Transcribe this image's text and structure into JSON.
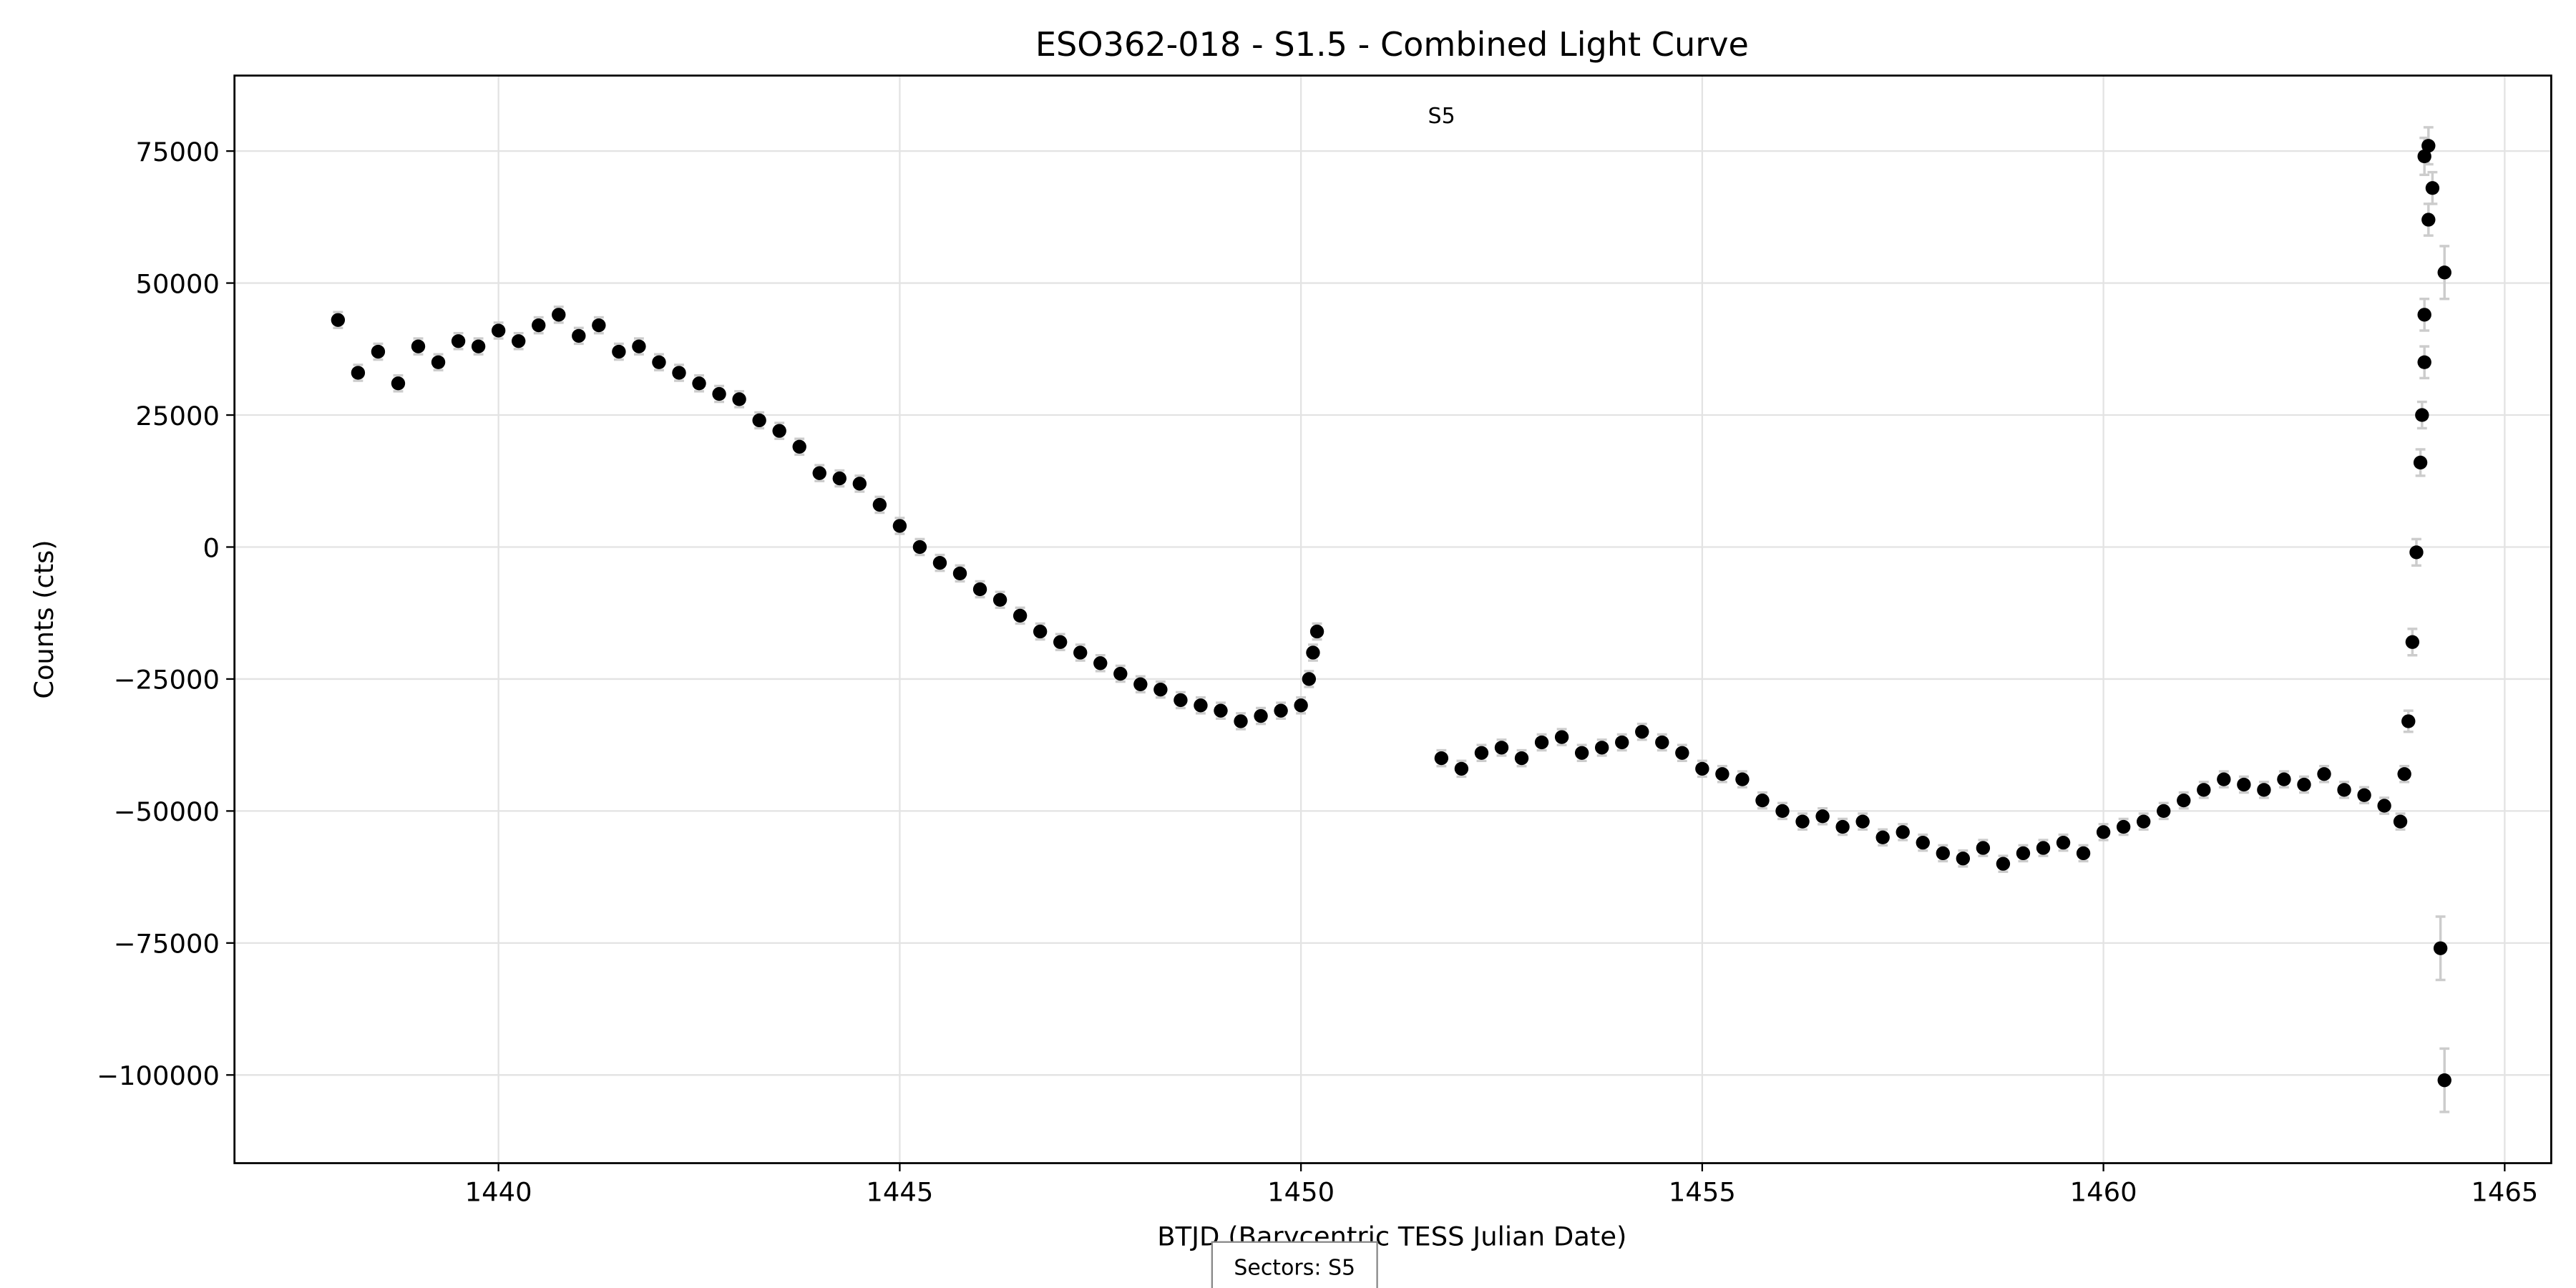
{
  "chart_data": {
    "type": "scatter",
    "title": "ESO362-018 - S1.5 - Combined Light Curve",
    "x_label": "BTJD (Barycentric TESS Julian Date)",
    "y_label": "Counts (cts)",
    "annotation": "S5",
    "footer": "Sectors: S5",
    "grid": true,
    "color": "#000000",
    "error_color": "#cccccc",
    "xlim": [
      1436.71,
      1465.58
    ],
    "ylim": [
      -116700,
      89300
    ],
    "xticks": [
      1440,
      1445,
      1450,
      1455,
      1460,
      1465
    ],
    "yticks": [
      {
        "value": -100000,
        "label": "−100000"
      },
      {
        "value": -75000,
        "label": "−75000"
      },
      {
        "value": -50000,
        "label": "−50000"
      },
      {
        "value": -25000,
        "label": "−25000"
      },
      0,
      25000,
      50000,
      75000
    ],
    "x": [
      1438,
      1438.25,
      1438.5,
      1438.75,
      1439,
      1439.25,
      1439.5,
      1439.75,
      1440,
      1440.25,
      1440.5,
      1440.75,
      1441,
      1441.25,
      1441.5,
      1441.75,
      1442,
      1442.25,
      1442.5,
      1442.75,
      1443,
      1443.25,
      1443.5,
      1443.75,
      1444,
      1444.25,
      1444.5,
      1444.75,
      1445,
      1445.25,
      1445.5,
      1445.75,
      1446,
      1446.25,
      1446.5,
      1446.75,
      1447,
      1447.25,
      1447.5,
      1447.75,
      1448,
      1448.25,
      1448.5,
      1448.75,
      1449,
      1449.25,
      1449.5,
      1449.75,
      1450,
      1450.1,
      1450.15,
      1450.2,
      1451.75,
      1452,
      1452.25,
      1452.5,
      1452.75,
      1453,
      1453.25,
      1453.5,
      1453.75,
      1454,
      1454.25,
      1454.5,
      1454.75,
      1455,
      1455.25,
      1455.5,
      1455.75,
      1456,
      1456.25,
      1456.5,
      1456.75,
      1457,
      1457.25,
      1457.5,
      1457.75,
      1458,
      1458.25,
      1458.5,
      1458.75,
      1459,
      1459.25,
      1459.5,
      1459.75,
      1460,
      1460.25,
      1460.5,
      1460.75,
      1461,
      1461.25,
      1461.5,
      1461.75,
      1462,
      1462.25,
      1462.5,
      1462.75,
      1463,
      1463.25,
      1463.5,
      1463.7,
      1463.75,
      1463.8,
      1463.85,
      1463.9,
      1463.95,
      1463.97,
      1464,
      1464,
      1464.05,
      1464.1,
      1464,
      1464.05,
      1464.25,
      1464.2,
      1464.25
    ],
    "values": [
      43000,
      33000,
      37000,
      31000,
      38000,
      35000,
      39000,
      38000,
      41000,
      39000,
      42000,
      44000,
      40000,
      42000,
      37000,
      38000,
      35000,
      33000,
      31000,
      29000,
      28000,
      24000,
      22000,
      19000,
      14000,
      13000,
      12000,
      8000,
      4000,
      0,
      -3000,
      -5000,
      -8000,
      -10000,
      -13000,
      -16000,
      -18000,
      -20000,
      -22000,
      -24000,
      -26000,
      -27000,
      -29000,
      -30000,
      -31000,
      -33000,
      -32000,
      -31000,
      -30000,
      -25000,
      -20000,
      -16000,
      -40000,
      -42000,
      -39000,
      -38000,
      -40000,
      -37000,
      -36000,
      -39000,
      -38000,
      -37000,
      -35000,
      -37000,
      -39000,
      -42000,
      -43000,
      -44000,
      -48000,
      -50000,
      -52000,
      -51000,
      -53000,
      -52000,
      -55000,
      -54000,
      -56000,
      -58000,
      -59000,
      -57000,
      -60000,
      -58000,
      -57000,
      -56000,
      -58000,
      -54000,
      -53000,
      -52000,
      -50000,
      -48000,
      -46000,
      -44000,
      -45000,
      -46000,
      -44000,
      -45000,
      -43000,
      -46000,
      -47000,
      -49000,
      -52000,
      -43000,
      -33000,
      -18000,
      -1000,
      16000,
      25000,
      35000,
      44000,
      62000,
      68000,
      74000,
      76000,
      52000,
      -76000,
      -101000
    ],
    "errors": [
      1500,
      1500,
      1500,
      1500,
      1500,
      1500,
      1500,
      1500,
      1500,
      1500,
      1500,
      1500,
      1500,
      1500,
      1500,
      1500,
      1500,
      1500,
      1500,
      1500,
      1500,
      1500,
      1500,
      1500,
      1500,
      1500,
      1500,
      1500,
      1500,
      1500,
      1500,
      1500,
      1500,
      1500,
      1500,
      1500,
      1500,
      1500,
      1500,
      1500,
      1500,
      1500,
      1500,
      1500,
      1500,
      1500,
      1500,
      1500,
      1500,
      1500,
      1500,
      1500,
      1500,
      1500,
      1500,
      1500,
      1500,
      1500,
      1500,
      1500,
      1500,
      1500,
      1500,
      1500,
      1500,
      1500,
      1500,
      1500,
      1500,
      1500,
      1500,
      1500,
      1500,
      1500,
      1500,
      1500,
      1500,
      1500,
      1500,
      1500,
      1500,
      1500,
      1500,
      1500,
      1500,
      1500,
      1500,
      1500,
      1500,
      1500,
      1500,
      1500,
      1500,
      1500,
      1500,
      1500,
      1500,
      1500,
      1500,
      1500,
      1500,
      1500,
      2000,
      2500,
      2500,
      2500,
      2500,
      3000,
      3000,
      3000,
      3000,
      3500,
      3500,
      5000,
      6000,
      6000
    ]
  }
}
